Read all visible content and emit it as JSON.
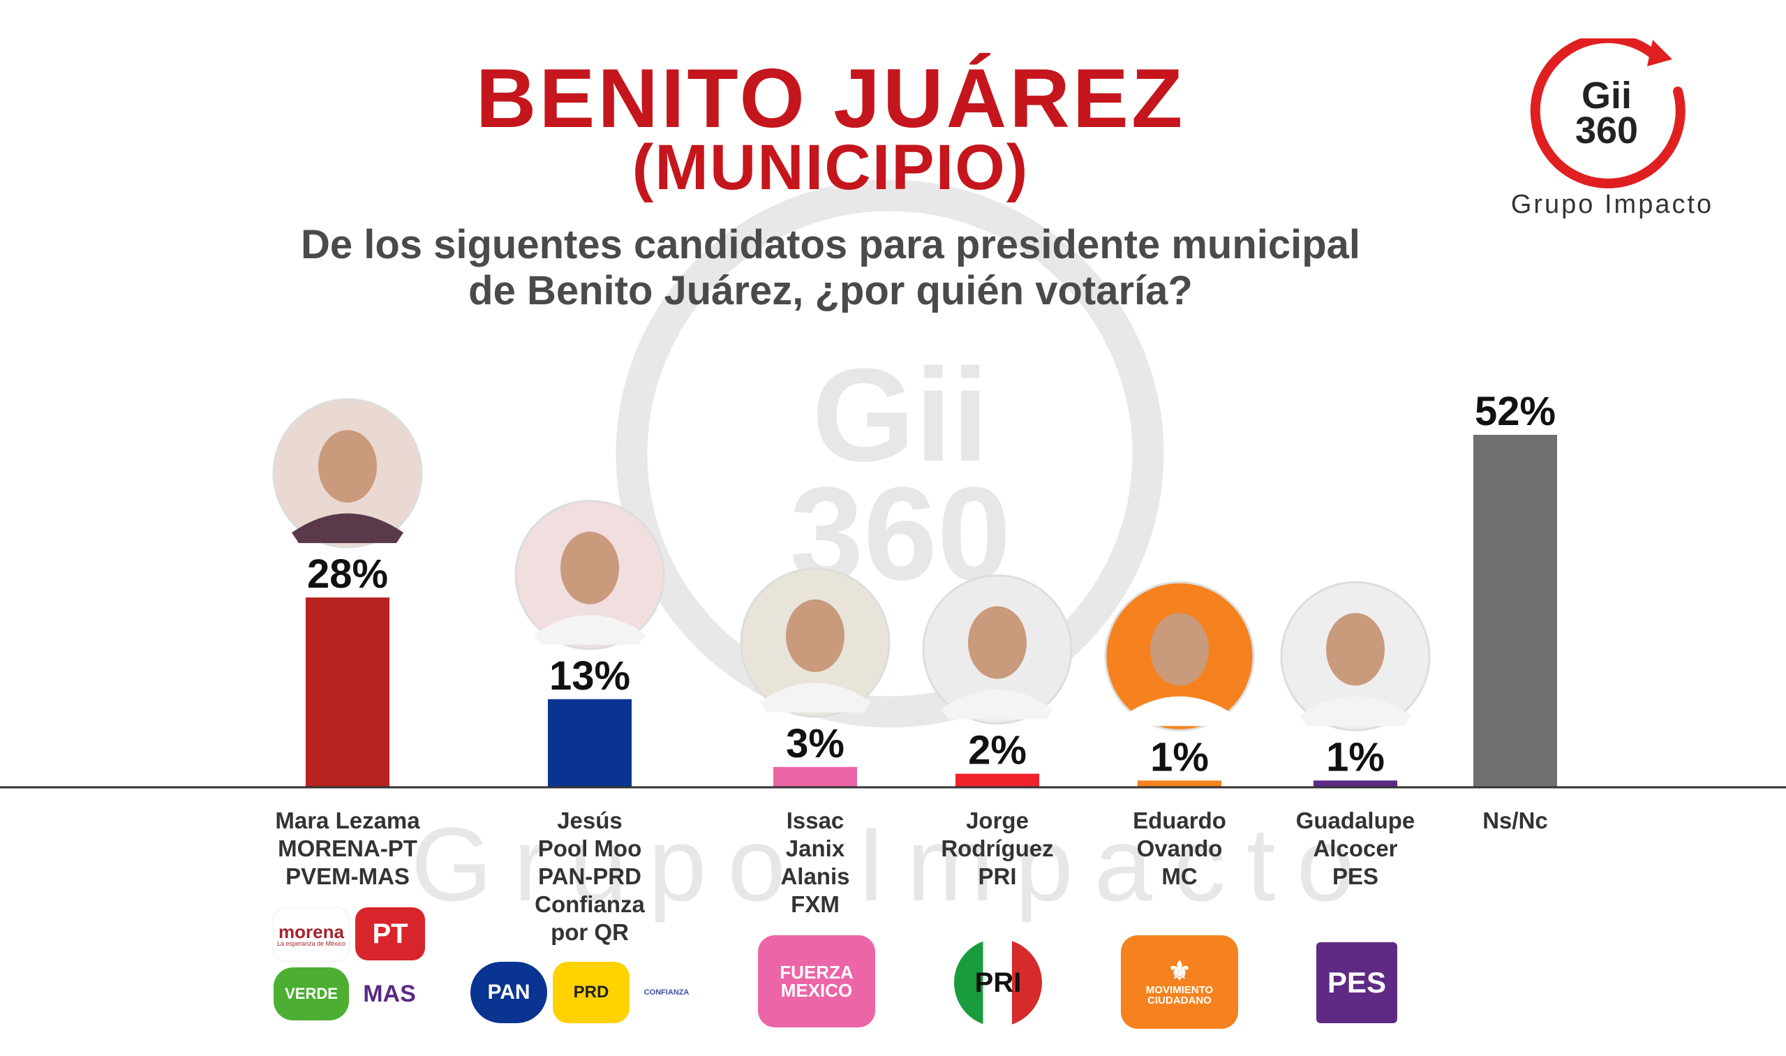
{
  "header": {
    "title": "BENITO JUÁREZ",
    "subtitle": "(MUNICIPIO)",
    "question_line1": "De los siguentes candidatos para presidente municipal",
    "question_line2": "de Benito Juárez, ¿por quién votaría?"
  },
  "brand": {
    "logo_line1": "Gii",
    "logo_line2": "360",
    "name": "Grupo Impacto",
    "color": "#e02020"
  },
  "chart_data": {
    "type": "bar",
    "title": "",
    "categories": [
      "Mara Lezama",
      "Jesús Pool Moo",
      "Issac Janix Alanis",
      "Jorge Rodríguez",
      "Eduardo Ovando",
      "Guadalupe Alcocer",
      "Ns/Nc"
    ],
    "values": [
      28,
      13,
      3,
      2,
      1,
      1,
      52
    ],
    "value_labels": [
      "28%",
      "13%",
      "3%",
      "2%",
      "1%",
      "1%",
      "52%"
    ],
    "colors": [
      "#b7231f",
      "#0a3491",
      "#ec65a6",
      "#f0212b",
      "#f5821f",
      "#5e2a84",
      "#707070"
    ],
    "ylim": [
      0,
      52
    ],
    "grid": false,
    "legend": "none",
    "label_lines": [
      [
        "Mara Lezama",
        "MORENA-PT",
        "PVEM-MAS"
      ],
      [
        "Jesús",
        "Pool Moo",
        "PAN-PRD",
        "Confianza",
        "por QR"
      ],
      [
        "Issac",
        "Janix",
        "Alanis",
        "FXM"
      ],
      [
        "Jorge",
        "Rodríguez",
        "PRI"
      ],
      [
        "Eduardo",
        "Ovando",
        "MC"
      ],
      [
        "Guadalupe",
        "Alcocer",
        "PES"
      ],
      [
        "Ns/Nc"
      ]
    ]
  },
  "parties": {
    "morena": "morena",
    "morena_tag": "La esperanza de México",
    "pt": "PT",
    "verde": "VERDE",
    "mas": "MAS",
    "pan": "PAN",
    "prd": "PRD",
    "confianza": "CONFIANZA",
    "fxm_line1": "FUERZA",
    "fxm_line2": "MEXICO",
    "pri": "PRI",
    "mc_line1": "MOVIMIENTO",
    "mc_line2": "CIUDADANO",
    "pes": "PES"
  },
  "watermark": {
    "logo_line1": "Gii",
    "logo_line2": "360",
    "name": "Grupo Impacto"
  }
}
